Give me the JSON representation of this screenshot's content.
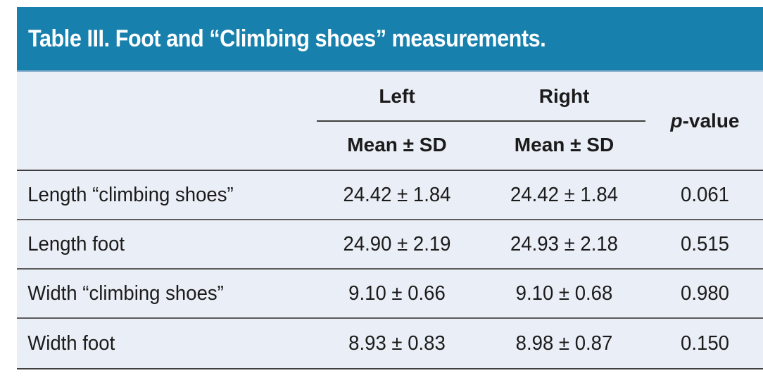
{
  "title": "Table III. Foot and “Climbing shoes” measurements.",
  "colors": {
    "header_bg": "#1780AD",
    "header_edge": "#84ACCB",
    "body_bg": "#EAEEF6",
    "rule_dark": "#3F3F3F",
    "rule_mid": "#5C5C5C",
    "text_dark": "#1B1B1B",
    "title_text": "#FFFFFF"
  },
  "columns": {
    "left_label": "Left",
    "right_label": "Right",
    "left_sub": "Mean ± SD",
    "right_sub": "Mean ± SD",
    "pvalue_italic": "p",
    "pvalue_rest": "-value"
  },
  "rows": [
    {
      "label": "Length “climbing shoes”",
      "left": "24.42 ± 1.84",
      "right": "24.42 ± 1.84",
      "p": "0.061"
    },
    {
      "label": "Length foot",
      "left": "24.90 ± 2.19",
      "right": "24.93 ± 2.18",
      "p": "0.515"
    },
    {
      "label": "Width “climbing shoes”",
      "left": "9.10 ± 0.66",
      "right": "9.10 ± 0.68",
      "p": "0.980"
    },
    {
      "label": "Width foot",
      "left": "8.93 ± 0.83",
      "right": "8.98 ± 0.87",
      "p": "0.150"
    }
  ]
}
